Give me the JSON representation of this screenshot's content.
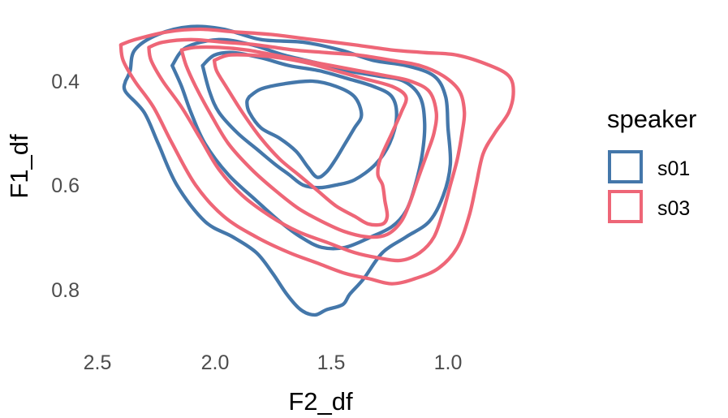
{
  "chart_data": {
    "type": "contour",
    "xlabel": "F2_df",
    "ylabel": "F1_df",
    "x_reversed": true,
    "y_reversed": true,
    "xlim": [
      2.6,
      0.58
    ],
    "ylim": [
      0.29,
      0.88
    ],
    "x_ticks": [
      2.5,
      2.0,
      1.5,
      1.0
    ],
    "x_tick_labels": [
      "2.5",
      "2.0",
      "1.5",
      "1.0"
    ],
    "y_ticks": [
      0.4,
      0.6,
      0.8
    ],
    "y_tick_labels": [
      "0.4",
      "0.6",
      "0.8"
    ],
    "grid": false,
    "legend_position": "right",
    "legend": {
      "title": "speaker",
      "entries": [
        {
          "label": "s01",
          "color": "#4477AA"
        },
        {
          "label": "s03",
          "color": "#EE6677"
        }
      ]
    },
    "series": [
      {
        "name": "s01",
        "color": "#4477AA",
        "contours": [
          [
            [
              2.38,
              0.4
            ],
            [
              2.36,
              0.38
            ],
            [
              2.34,
              0.34
            ],
            [
              2.24,
              0.31
            ],
            [
              2.1,
              0.295
            ],
            [
              1.96,
              0.3
            ],
            [
              1.8,
              0.32
            ],
            [
              1.62,
              0.325
            ],
            [
              1.46,
              0.34
            ],
            [
              1.32,
              0.36
            ],
            [
              1.18,
              0.37
            ],
            [
              1.06,
              0.39
            ],
            [
              1.01,
              0.43
            ],
            [
              1.0,
              0.49
            ],
            [
              0.99,
              0.56
            ],
            [
              1.02,
              0.62
            ],
            [
              1.08,
              0.67
            ],
            [
              1.18,
              0.7
            ],
            [
              1.28,
              0.73
            ],
            [
              1.36,
              0.78
            ],
            [
              1.42,
              0.81
            ],
            [
              1.45,
              0.83
            ],
            [
              1.52,
              0.84
            ],
            [
              1.57,
              0.85
            ],
            [
              1.63,
              0.84
            ],
            [
              1.69,
              0.81
            ],
            [
              1.75,
              0.77
            ],
            [
              1.82,
              0.73
            ],
            [
              1.92,
              0.7
            ],
            [
              2.04,
              0.67
            ],
            [
              2.16,
              0.6
            ],
            [
              2.24,
              0.52
            ],
            [
              2.3,
              0.46
            ],
            [
              2.38,
              0.42
            ],
            [
              2.38,
              0.4
            ]
          ],
          [
            [
              2.18,
              0.37
            ],
            [
              2.12,
              0.335
            ],
            [
              1.98,
              0.32
            ],
            [
              1.84,
              0.33
            ],
            [
              1.7,
              0.35
            ],
            [
              1.56,
              0.365
            ],
            [
              1.43,
              0.38
            ],
            [
              1.3,
              0.39
            ],
            [
              1.19,
              0.4
            ],
            [
              1.12,
              0.43
            ],
            [
              1.1,
              0.48
            ],
            [
              1.11,
              0.54
            ],
            [
              1.14,
              0.6
            ],
            [
              1.18,
              0.65
            ],
            [
              1.24,
              0.68
            ],
            [
              1.33,
              0.7
            ],
            [
              1.44,
              0.72
            ],
            [
              1.54,
              0.72
            ],
            [
              1.63,
              0.7
            ],
            [
              1.72,
              0.67
            ],
            [
              1.82,
              0.63
            ],
            [
              1.94,
              0.58
            ],
            [
              2.04,
              0.52
            ],
            [
              2.1,
              0.46
            ],
            [
              2.14,
              0.41
            ],
            [
              2.18,
              0.37
            ]
          ],
          [
            [
              2.05,
              0.37
            ],
            [
              2.0,
              0.35
            ],
            [
              1.92,
              0.345
            ],
            [
              1.8,
              0.355
            ],
            [
              1.68,
              0.37
            ],
            [
              1.55,
              0.38
            ],
            [
              1.43,
              0.395
            ],
            [
              1.32,
              0.41
            ],
            [
              1.24,
              0.43
            ],
            [
              1.22,
              0.47
            ],
            [
              1.25,
              0.52
            ],
            [
              1.31,
              0.56
            ],
            [
              1.4,
              0.59
            ],
            [
              1.48,
              0.6
            ],
            [
              1.55,
              0.605
            ],
            [
              1.62,
              0.6
            ],
            [
              1.68,
              0.58
            ],
            [
              1.74,
              0.56
            ],
            [
              1.82,
              0.53
            ],
            [
              1.9,
              0.5
            ],
            [
              1.98,
              0.46
            ],
            [
              2.02,
              0.42
            ],
            [
              2.05,
              0.37
            ]
          ],
          [
            [
              1.85,
              0.43
            ],
            [
              1.8,
              0.415
            ],
            [
              1.7,
              0.405
            ],
            [
              1.58,
              0.4
            ],
            [
              1.48,
              0.41
            ],
            [
              1.4,
              0.43
            ],
            [
              1.37,
              0.465
            ],
            [
              1.4,
              0.49
            ],
            [
              1.44,
              0.52
            ],
            [
              1.48,
              0.55
            ],
            [
              1.52,
              0.575
            ],
            [
              1.56,
              0.585
            ],
            [
              1.6,
              0.565
            ],
            [
              1.65,
              0.535
            ],
            [
              1.72,
              0.51
            ],
            [
              1.8,
              0.49
            ],
            [
              1.85,
              0.46
            ],
            [
              1.86,
              0.44
            ],
            [
              1.85,
              0.43
            ]
          ]
        ]
      },
      {
        "name": "s03",
        "color": "#EE6677",
        "contours": [
          [
            [
              2.4,
              0.33
            ],
            [
              2.34,
              0.32
            ],
            [
              2.2,
              0.305
            ],
            [
              2.06,
              0.3
            ],
            [
              1.92,
              0.305
            ],
            [
              1.76,
              0.31
            ],
            [
              1.58,
              0.32
            ],
            [
              1.4,
              0.33
            ],
            [
              1.24,
              0.34
            ],
            [
              1.1,
              0.345
            ],
            [
              0.96,
              0.35
            ],
            [
              0.82,
              0.37
            ],
            [
              0.74,
              0.39
            ],
            [
              0.72,
              0.42
            ],
            [
              0.74,
              0.46
            ],
            [
              0.8,
              0.5
            ],
            [
              0.85,
              0.54
            ],
            [
              0.88,
              0.6
            ],
            [
              0.91,
              0.66
            ],
            [
              0.96,
              0.72
            ],
            [
              1.04,
              0.76
            ],
            [
              1.14,
              0.78
            ],
            [
              1.24,
              0.79
            ],
            [
              1.34,
              0.78
            ],
            [
              1.44,
              0.77
            ],
            [
              1.56,
              0.75
            ],
            [
              1.68,
              0.73
            ],
            [
              1.82,
              0.7
            ],
            [
              1.96,
              0.66
            ],
            [
              2.08,
              0.6
            ],
            [
              2.18,
              0.52
            ],
            [
              2.26,
              0.45
            ],
            [
              2.34,
              0.4
            ],
            [
              2.39,
              0.36
            ],
            [
              2.4,
              0.33
            ]
          ],
          [
            [
              2.28,
              0.335
            ],
            [
              2.22,
              0.325
            ],
            [
              2.1,
              0.32
            ],
            [
              1.96,
              0.325
            ],
            [
              1.82,
              0.33
            ],
            [
              1.66,
              0.34
            ],
            [
              1.52,
              0.345
            ],
            [
              1.38,
              0.35
            ],
            [
              1.24,
              0.36
            ],
            [
              1.12,
              0.37
            ],
            [
              1.02,
              0.39
            ],
            [
              0.95,
              0.42
            ],
            [
              0.93,
              0.46
            ],
            [
              0.94,
              0.5
            ],
            [
              0.96,
              0.55
            ],
            [
              0.99,
              0.6
            ],
            [
              1.02,
              0.65
            ],
            [
              1.06,
              0.7
            ],
            [
              1.12,
              0.73
            ],
            [
              1.2,
              0.745
            ],
            [
              1.3,
              0.74
            ],
            [
              1.4,
              0.73
            ],
            [
              1.52,
              0.71
            ],
            [
              1.64,
              0.69
            ],
            [
              1.76,
              0.66
            ],
            [
              1.88,
              0.62
            ],
            [
              1.98,
              0.57
            ],
            [
              2.06,
              0.51
            ],
            [
              2.14,
              0.45
            ],
            [
              2.22,
              0.4
            ],
            [
              2.27,
              0.36
            ],
            [
              2.28,
              0.335
            ]
          ],
          [
            [
              2.14,
              0.34
            ],
            [
              2.08,
              0.335
            ],
            [
              1.98,
              0.335
            ],
            [
              1.86,
              0.34
            ],
            [
              1.74,
              0.35
            ],
            [
              1.62,
              0.36
            ],
            [
              1.5,
              0.37
            ],
            [
              1.38,
              0.38
            ],
            [
              1.26,
              0.39
            ],
            [
              1.16,
              0.4
            ],
            [
              1.08,
              0.42
            ],
            [
              1.05,
              0.46
            ],
            [
              1.06,
              0.5
            ],
            [
              1.09,
              0.54
            ],
            [
              1.13,
              0.59
            ],
            [
              1.16,
              0.63
            ],
            [
              1.2,
              0.67
            ],
            [
              1.26,
              0.695
            ],
            [
              1.34,
              0.7
            ],
            [
              1.44,
              0.69
            ],
            [
              1.54,
              0.67
            ],
            [
              1.64,
              0.645
            ],
            [
              1.74,
              0.61
            ],
            [
              1.84,
              0.57
            ],
            [
              1.94,
              0.52
            ],
            [
              2.02,
              0.46
            ],
            [
              2.08,
              0.41
            ],
            [
              2.12,
              0.37
            ],
            [
              2.14,
              0.34
            ]
          ],
          [
            [
              2.0,
              0.36
            ],
            [
              1.94,
              0.35
            ],
            [
              1.84,
              0.35
            ],
            [
              1.72,
              0.355
            ],
            [
              1.6,
              0.365
            ],
            [
              1.48,
              0.38
            ],
            [
              1.36,
              0.395
            ],
            [
              1.24,
              0.41
            ],
            [
              1.18,
              0.43
            ],
            [
              1.2,
              0.46
            ],
            [
              1.24,
              0.5
            ],
            [
              1.29,
              0.55
            ],
            [
              1.3,
              0.58
            ],
            [
              1.28,
              0.6
            ],
            [
              1.27,
              0.63
            ],
            [
              1.26,
              0.66
            ],
            [
              1.28,
              0.675
            ],
            [
              1.34,
              0.675
            ],
            [
              1.4,
              0.66
            ],
            [
              1.48,
              0.64
            ],
            [
              1.56,
              0.61
            ],
            [
              1.64,
              0.58
            ],
            [
              1.72,
              0.55
            ],
            [
              1.8,
              0.51
            ],
            [
              1.88,
              0.46
            ],
            [
              1.95,
              0.41
            ],
            [
              1.99,
              0.38
            ],
            [
              2.0,
              0.36
            ]
          ]
        ]
      }
    ]
  }
}
